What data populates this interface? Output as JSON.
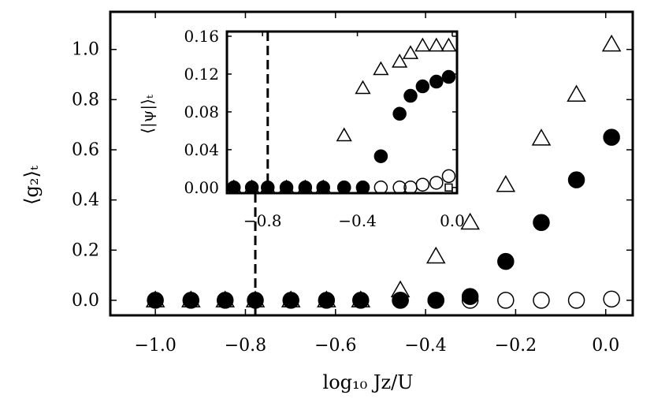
{
  "chart_data": [
    {
      "type": "scatter",
      "panel": "main",
      "xlabel": "log₁₀ Jz/U",
      "ylabel": "⟨g₂⟩ₜ",
      "xlim": [
        -1.1,
        0.06
      ],
      "ylim": [
        -0.06,
        1.15
      ],
      "xticks": [
        -1.0,
        -0.8,
        -0.6,
        -0.4,
        -0.2,
        0.0
      ],
      "xtick_labels": [
        "−1.0",
        "−0.8",
        "−0.6",
        "−0.4",
        "−0.2",
        "0.0"
      ],
      "yticks": [
        0.0,
        0.2,
        0.4,
        0.6,
        0.8,
        1.0
      ],
      "ytick_labels": [
        "0.0",
        "0.2",
        "0.4",
        "0.6",
        "0.8",
        "1.0"
      ],
      "vline": -0.778,
      "series": [
        {
          "marker": "triangle-open",
          "x": [
            -1.0,
            -0.921,
            -0.845,
            -0.778,
            -0.699,
            -0.62,
            -0.544,
            -0.456,
            -0.377,
            -0.301,
            -0.222,
            -0.143,
            -0.065,
            0.013
          ],
          "y": [
            0.0,
            0.0,
            0.0,
            0.0,
            0.0,
            0.0,
            0.0,
            0.04,
            0.175,
            0.31,
            0.46,
            0.645,
            0.82,
            1.02
          ]
        },
        {
          "marker": "circle-filled",
          "x": [
            -1.0,
            -0.921,
            -0.845,
            -0.778,
            -0.699,
            -0.62,
            -0.544,
            -0.456,
            -0.377,
            -0.301,
            -0.222,
            -0.143,
            -0.065,
            0.013
          ],
          "y": [
            0.0,
            0.0,
            0.0,
            0.0,
            0.0,
            0.0,
            0.0,
            0.0,
            0.0,
            0.015,
            0.155,
            0.31,
            0.48,
            0.65
          ]
        },
        {
          "marker": "circle-open",
          "x": [
            -0.456,
            -0.377,
            -0.301,
            -0.222,
            -0.143,
            -0.065,
            0.013
          ],
          "y": [
            0.0,
            0.0,
            0.0,
            0.0,
            0.0,
            0.0,
            0.005
          ]
        }
      ]
    },
    {
      "type": "scatter",
      "panel": "inset",
      "ylabel": "⟨|ψ|⟩ₜ",
      "xlim": [
        -0.95,
        0.02
      ],
      "ylim": [
        -0.006,
        0.165
      ],
      "xticks": [
        -0.8,
        -0.4,
        0.0
      ],
      "xtick_labels": [
        "−0.8",
        "−0.4",
        "0.0"
      ],
      "yticks": [
        0.0,
        0.04,
        0.08,
        0.12,
        0.16
      ],
      "ytick_labels": [
        "0.00",
        "0.04",
        "0.08",
        "0.12",
        "0.16"
      ],
      "vline": -0.778,
      "series": [
        {
          "marker": "triangle-open",
          "x": [
            -0.921,
            -0.845,
            -0.778,
            -0.699,
            -0.62,
            -0.544,
            -0.456,
            -0.377,
            -0.301,
            -0.222,
            -0.176,
            -0.125,
            -0.067,
            -0.015
          ],
          "y": [
            0.0,
            0.0,
            0.0,
            0.0,
            0.0,
            0.0,
            0.055,
            0.105,
            0.125,
            0.133,
            0.142,
            0.15,
            0.15,
            0.15
          ]
        },
        {
          "marker": "circle-filled",
          "x": [
            -0.921,
            -0.845,
            -0.778,
            -0.699,
            -0.62,
            -0.544,
            -0.456,
            -0.377,
            -0.301,
            -0.222,
            -0.176,
            -0.125,
            -0.067,
            -0.015
          ],
          "y": [
            0.0,
            0.0,
            0.0,
            0.0,
            0.0,
            0.0,
            0.0,
            0.0,
            0.033,
            0.078,
            0.097,
            0.107,
            0.112,
            0.117
          ]
        },
        {
          "marker": "circle-open",
          "x": [
            -0.456,
            -0.377,
            -0.301,
            -0.222,
            -0.176,
            -0.125,
            -0.067,
            -0.015
          ],
          "y": [
            0.0,
            0.0,
            0.0,
            0.0,
            0.0,
            0.003,
            0.005,
            0.012
          ]
        },
        {
          "marker": "square-open",
          "x": [
            -0.015
          ],
          "y": [
            0.0
          ]
        }
      ]
    }
  ]
}
